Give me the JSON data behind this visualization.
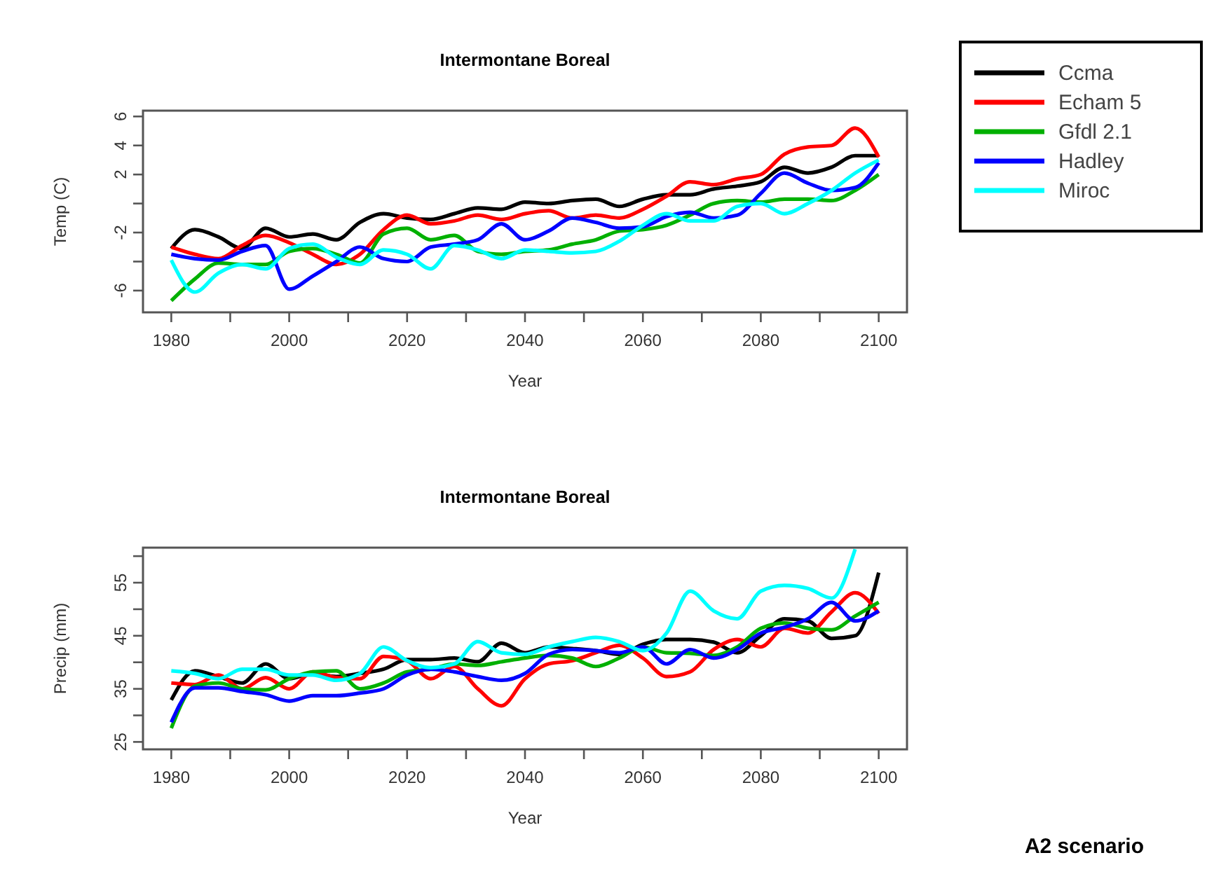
{
  "chart_data": [
    {
      "type": "line",
      "title": "Intermontane Boreal",
      "xlabel": "Year",
      "ylabel": "Temp (C)",
      "legend": "top right",
      "grid": false,
      "line_style": "solid",
      "marker": "none",
      "x": [
        1980,
        1984,
        1988,
        1992,
        1996,
        2000,
        2004,
        2008,
        2012,
        2016,
        2020,
        2024,
        2028,
        2032,
        2036,
        2040,
        2044,
        2048,
        2052,
        2056,
        2060,
        2064,
        2068,
        2072,
        2076,
        2080,
        2084,
        2088,
        2092,
        2096,
        2100
      ],
      "xlim": [
        1975.2,
        2104.8
      ],
      "ylim": [
        -7.5,
        6.4
      ],
      "xticks": [
        1980,
        {
          "value": 1990,
          "label": null
        },
        2000,
        {
          "value": 2010,
          "label": null
        },
        2020,
        {
          "value": 2030,
          "label": null
        },
        2040,
        {
          "value": 2050,
          "label": null
        },
        2060,
        {
          "value": 2070,
          "label": null
        },
        2080,
        {
          "value": 2090,
          "label": null
        },
        2100
      ],
      "yticks": [
        -6,
        {
          "value": -4,
          "label": null
        },
        -2,
        {
          "value": 0,
          "label": null
        },
        2,
        4,
        6
      ],
      "series": [
        {
          "name": "Ccma",
          "color": "#000000",
          "values": [
            -3.1,
            -1.8,
            -2.3,
            -3.1,
            -1.7,
            -2.3,
            -2.1,
            -2.5,
            -1.3,
            -0.7,
            -1,
            -1.1,
            -0.7,
            -0.3,
            -0.4,
            0.1,
            0,
            0.2,
            0.3,
            -0.2,
            0.3,
            0.6,
            0.6,
            1,
            1.2,
            1.5,
            2.5,
            2.1,
            2.5,
            3.3,
            3.3
          ]
        },
        {
          "name": "Echam 5",
          "color": "#ff0000",
          "values": [
            -3,
            -3.5,
            -3.8,
            -2.9,
            -2.2,
            -2.7,
            -3.5,
            -4.2,
            -3.5,
            -1.8,
            -0.8,
            -1.4,
            -1.2,
            -0.8,
            -1.1,
            -0.7,
            -0.5,
            -1,
            -0.8,
            -1,
            -0.4,
            0.5,
            1.5,
            1.3,
            1.7,
            2,
            3.4,
            3.9,
            4,
            5.2,
            3.2
          ]
        },
        {
          "name": "Gfdl 2.1",
          "color": "#00b000",
          "values": [
            -6.7,
            -5.2,
            -4.1,
            -4.2,
            -4.2,
            -3.3,
            -3.1,
            -3.5,
            -4.1,
            -2.1,
            -1.7,
            -2.5,
            -2.2,
            -3.3,
            -3.5,
            -3.3,
            -3.2,
            -2.8,
            -2.5,
            -1.9,
            -1.8,
            -1.5,
            -0.8,
            0,
            0.2,
            0.1,
            0.3,
            0.3,
            0.2,
            0.9,
            2
          ]
        },
        {
          "name": "Hadley",
          "color": "#0000ff",
          "values": [
            -3.5,
            -3.8,
            -3.9,
            -3.3,
            -2.9,
            -5.9,
            -5,
            -4,
            -3,
            -3.8,
            -4,
            -3,
            -2.8,
            -2.5,
            -1.4,
            -2.5,
            -1.9,
            -1,
            -1.3,
            -1.7,
            -1.6,
            -0.9,
            -0.6,
            -1,
            -0.8,
            0.7,
            2.1,
            1.4,
            0.9,
            1.1,
            2.8
          ]
        },
        {
          "name": "Miroc",
          "color": "#00ffff",
          "values": [
            -3.9,
            -6.1,
            -4.8,
            -4.2,
            -4.5,
            -3.1,
            -2.8,
            -3.7,
            -4.2,
            -3.2,
            -3.5,
            -4.5,
            -2.9,
            -3.2,
            -3.8,
            -3.2,
            -3.3,
            -3.4,
            -3.3,
            -2.6,
            -1.5,
            -0.7,
            -1.2,
            -1.2,
            -0.2,
            0,
            -0.7,
            0,
            0.9,
            2.1,
            3
          ]
        }
      ]
    },
    {
      "type": "line",
      "title": "Intermontane Boreal",
      "xlabel": "Year",
      "ylabel": "Precip (mm)",
      "grid": false,
      "line_style": "solid",
      "marker": "none",
      "annotations": [
        "A2 scenario"
      ],
      "x": [
        1980,
        1984,
        1988,
        1992,
        1996,
        2000,
        2004,
        2008,
        2012,
        2016,
        2020,
        2024,
        2028,
        2032,
        2036,
        2040,
        2044,
        2048,
        2052,
        2056,
        2060,
        2064,
        2068,
        2072,
        2076,
        2080,
        2084,
        2088,
        2092,
        2096,
        2100
      ],
      "xlim": [
        1975.2,
        2104.8
      ],
      "ylim": [
        23.6,
        61.6
      ],
      "xticks": [
        1980,
        {
          "value": 1990,
          "label": null
        },
        2000,
        {
          "value": 2010,
          "label": null
        },
        2020,
        {
          "value": 2030,
          "label": null
        },
        2040,
        {
          "value": 2050,
          "label": null
        },
        2060,
        {
          "value": 2070,
          "label": null
        },
        2080,
        {
          "value": 2090,
          "label": null
        },
        2100
      ],
      "yticks": [
        25,
        {
          "value": 30,
          "label": null
        },
        35,
        {
          "value": 40,
          "label": null
        },
        45,
        {
          "value": 50,
          "label": null
        },
        55,
        {
          "value": 60,
          "label": null
        }
      ],
      "series": [
        {
          "color": "#000000",
          "values": [
            32.9,
            38.4,
            37.3,
            36.1,
            39.7,
            36.9,
            37.9,
            37.3,
            37.9,
            38.7,
            40.5,
            40.5,
            40.8,
            40.1,
            43.6,
            41.8,
            42.9,
            42.6,
            42.2,
            41.5,
            43.4,
            44.3,
            44.3,
            43.8,
            41.8,
            45,
            48.2,
            47.8,
            44.5,
            45,
            56.9
          ]
        },
        {
          "color": "#ff0000",
          "values": [
            36.1,
            35.8,
            37.6,
            35,
            37.1,
            35,
            38.2,
            37.1,
            36.9,
            41.1,
            40.3,
            36.9,
            39.2,
            35,
            31.8,
            36.9,
            39.7,
            40.3,
            41.8,
            43.2,
            40.8,
            37.3,
            38.2,
            42.4,
            44.3,
            42.9,
            46.4,
            45.5,
            49.5,
            53.1,
            49.2
          ]
        },
        {
          "color": "#00b000",
          "values": [
            27.6,
            35.5,
            36.1,
            35,
            34.8,
            36.9,
            38.2,
            38.4,
            35,
            36.1,
            38.2,
            38.7,
            39.7,
            39.4,
            40.1,
            40.8,
            41.3,
            40.8,
            39.2,
            40.8,
            42.9,
            41.8,
            41.7,
            41.3,
            42.9,
            46.4,
            47.4,
            46.4,
            46.1,
            48.7,
            51.3
          ]
        },
        {
          "color": "#0000ff",
          "values": [
            28.7,
            35.2,
            35.2,
            34.5,
            33.9,
            32.7,
            33.7,
            33.7,
            34.2,
            35,
            37.6,
            38.7,
            38.2,
            37.3,
            36.6,
            37.9,
            41.5,
            42.4,
            42.2,
            41.8,
            42.9,
            39.7,
            42.4,
            40.8,
            42.4,
            45.5,
            46.6,
            48.2,
            51.3,
            47.8,
            49.7
          ]
        },
        {
          "color": "#00ffff",
          "values": [
            38.4,
            37.9,
            36.9,
            38.7,
            38.7,
            37.6,
            37.6,
            36.6,
            37.9,
            42.9,
            40.3,
            39,
            39.7,
            43.9,
            41.8,
            41.5,
            42.9,
            43.9,
            44.7,
            43.9,
            42.2,
            45.5,
            53.4,
            49.7,
            48.2,
            53.4,
            54.5,
            53.9,
            52.1,
            61.3,
            null
          ]
        }
      ]
    }
  ]
}
